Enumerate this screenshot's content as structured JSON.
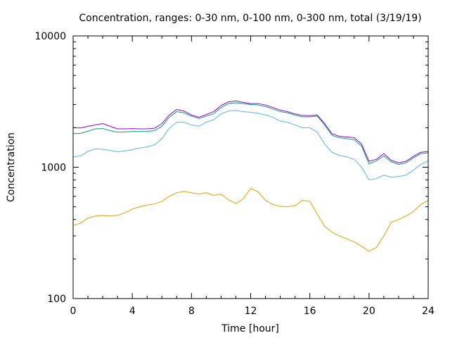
{
  "chart_data": {
    "type": "line",
    "title": "Concentration, ranges: 0-30 nm, 0-100 nm, 0-300 nm, total (3/19/19)",
    "xlabel": "Time [hour]",
    "ylabel": "Concentration",
    "xlim": [
      0,
      24
    ],
    "ylim": [
      100,
      10000
    ],
    "yscale": "log",
    "grid": false,
    "x_ticks": [
      0,
      4,
      8,
      12,
      16,
      20,
      24
    ],
    "x_tick_labels": [
      "0",
      "4",
      "8",
      "12",
      "16",
      "20",
      "24"
    ],
    "y_ticks": [
      100,
      1000,
      10000
    ],
    "y_tick_labels": [
      "100",
      "1000",
      "10000"
    ],
    "series": [
      {
        "color": "#e69f00",
        "x": [
          0,
          0.5,
          1,
          1.5,
          2,
          2.5,
          3,
          3.5,
          4,
          4.5,
          5,
          5.5,
          6,
          6.5,
          7,
          7.5,
          8,
          8.5,
          9,
          9.5,
          10,
          10.5,
          11,
          11.5,
          12,
          12.5,
          13,
          13.5,
          14,
          14.5,
          15,
          15.5,
          16,
          16.5,
          17,
          17.5,
          18,
          18.5,
          19,
          19.5,
          20,
          20.5,
          21,
          21.5,
          22,
          22.5,
          23,
          23.5,
          24
        ],
        "values": [
          360,
          375,
          410,
          425,
          430,
          425,
          430,
          450,
          480,
          500,
          515,
          525,
          550,
          600,
          640,
          655,
          640,
          625,
          640,
          610,
          625,
          565,
          530,
          575,
          690,
          650,
          560,
          520,
          505,
          500,
          510,
          560,
          550,
          440,
          355,
          320,
          300,
          285,
          270,
          250,
          230,
          245,
          300,
          380,
          400,
          425,
          460,
          520,
          560
        ]
      },
      {
        "color": "#56b4e9",
        "x": [
          0,
          0.5,
          1,
          1.5,
          2,
          2.5,
          3,
          3.5,
          4,
          4.5,
          5,
          5.5,
          6,
          6.5,
          7,
          7.5,
          8,
          8.5,
          9,
          9.5,
          10,
          10.5,
          11,
          11.5,
          12,
          12.5,
          13,
          13.5,
          14,
          14.5,
          15,
          15.5,
          16,
          16.5,
          17,
          17.5,
          18,
          18.5,
          19,
          19.5,
          20,
          20.5,
          21,
          21.5,
          22,
          22.5,
          23,
          23.5,
          24
        ],
        "values": [
          1200,
          1220,
          1320,
          1380,
          1370,
          1340,
          1310,
          1330,
          1360,
          1400,
          1430,
          1480,
          1650,
          1980,
          2200,
          2200,
          2100,
          2050,
          2200,
          2300,
          2550,
          2680,
          2700,
          2650,
          2620,
          2580,
          2500,
          2400,
          2250,
          2200,
          2100,
          2000,
          2000,
          1850,
          1500,
          1300,
          1230,
          1200,
          1150,
          1000,
          800,
          820,
          870,
          840,
          850,
          870,
          950,
          1050,
          1120
        ]
      },
      {
        "color": "#009e73",
        "x": [
          0,
          0.5,
          1,
          1.5,
          2,
          2.5,
          3,
          3.5,
          4,
          4.5,
          5,
          5.5,
          6,
          6.5,
          7,
          7.5,
          8,
          8.5,
          9,
          9.5,
          10,
          10.5,
          11,
          11.5,
          12,
          12.5,
          13,
          13.5,
          14,
          14.5,
          15,
          15.5,
          16,
          16.5,
          17,
          17.5,
          18,
          18.5,
          19,
          19.5,
          20,
          20.5,
          21,
          21.5,
          22,
          22.5,
          23,
          23.5,
          24
        ],
        "values": [
          1800,
          1810,
          1880,
          1960,
          1970,
          1900,
          1850,
          1860,
          1870,
          1870,
          1870,
          1900,
          2050,
          2400,
          2650,
          2600,
          2450,
          2350,
          2450,
          2550,
          2850,
          3050,
          3100,
          3050,
          3000,
          2980,
          2900,
          2780,
          2650,
          2600,
          2500,
          2420,
          2420,
          2450,
          2100,
          1750,
          1680,
          1650,
          1620,
          1450,
          1060,
          1120,
          1220,
          1100,
          1050,
          1080,
          1180,
          1270,
          1290
        ]
      },
      {
        "color": "#9400d3",
        "x": [
          0,
          0.5,
          1,
          1.5,
          2,
          2.5,
          3,
          3.5,
          4,
          4.5,
          5,
          5.5,
          6,
          6.5,
          7,
          7.5,
          8,
          8.5,
          9,
          9.5,
          10,
          10.5,
          11,
          11.5,
          12,
          12.5,
          13,
          13.5,
          14,
          14.5,
          15,
          15.5,
          16,
          16.5,
          17,
          17.5,
          18,
          18.5,
          19,
          19.5,
          20,
          20.5,
          21,
          21.5,
          22,
          22.5,
          23,
          23.5,
          24
        ],
        "values": [
          2000,
          1990,
          2050,
          2100,
          2150,
          2050,
          1960,
          1960,
          1970,
          1960,
          1960,
          1980,
          2150,
          2500,
          2750,
          2680,
          2500,
          2400,
          2520,
          2650,
          2950,
          3150,
          3200,
          3120,
          3050,
          3050,
          2980,
          2850,
          2720,
          2650,
          2550,
          2480,
          2470,
          2500,
          2150,
          1800,
          1720,
          1700,
          1680,
          1500,
          1110,
          1150,
          1270,
          1130,
          1080,
          1110,
          1210,
          1300,
          1320
        ]
      }
    ]
  }
}
